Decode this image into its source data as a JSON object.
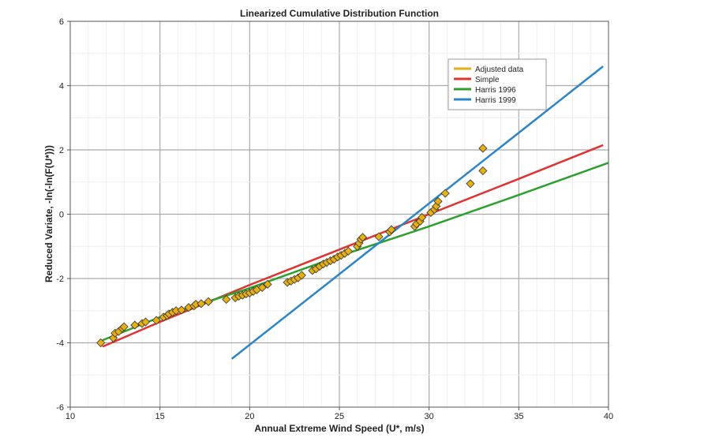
{
  "chart_data": {
    "type": "scatter",
    "title": "Linearized Cumulative Distribution Function",
    "xlabel": "Annual Extreme Wind Speed (U*, m/s)",
    "ylabel": "Reduced Variate, -ln(-ln(F(U*)))",
    "xlim": [
      10,
      40
    ],
    "ylim": [
      -6,
      6
    ],
    "xticks": [
      10,
      15,
      20,
      25,
      30,
      35,
      40
    ],
    "yticks": [
      -6,
      -4,
      -2,
      0,
      2,
      4,
      6
    ],
    "grid": true,
    "legend_position": "top-right",
    "series": [
      {
        "name": "Adjusted data",
        "type": "scatter",
        "color": "#e6b012",
        "points": [
          [
            11.7,
            -4.0
          ],
          [
            12.4,
            -3.85
          ],
          [
            12.5,
            -3.7
          ],
          [
            12.7,
            -3.65
          ],
          [
            12.9,
            -3.55
          ],
          [
            13.0,
            -3.5
          ],
          [
            13.6,
            -3.45
          ],
          [
            14.0,
            -3.4
          ],
          [
            14.2,
            -3.35
          ],
          [
            14.8,
            -3.3
          ],
          [
            15.2,
            -3.2
          ],
          [
            15.4,
            -3.15
          ],
          [
            15.5,
            -3.1
          ],
          [
            15.7,
            -3.05
          ],
          [
            15.9,
            -3.0
          ],
          [
            16.2,
            -2.98
          ],
          [
            16.6,
            -2.9
          ],
          [
            16.9,
            -2.85
          ],
          [
            17.0,
            -2.8
          ],
          [
            17.3,
            -2.78
          ],
          [
            17.7,
            -2.72
          ],
          [
            18.7,
            -2.65
          ],
          [
            19.2,
            -2.6
          ],
          [
            19.4,
            -2.55
          ],
          [
            19.6,
            -2.52
          ],
          [
            19.8,
            -2.48
          ],
          [
            20.0,
            -2.45
          ],
          [
            20.2,
            -2.4
          ],
          [
            20.4,
            -2.35
          ],
          [
            20.7,
            -2.28
          ],
          [
            21.0,
            -2.18
          ],
          [
            22.1,
            -2.12
          ],
          [
            22.3,
            -2.08
          ],
          [
            22.5,
            -2.03
          ],
          [
            22.7,
            -1.98
          ],
          [
            22.9,
            -1.9
          ],
          [
            23.5,
            -1.75
          ],
          [
            23.7,
            -1.7
          ],
          [
            23.9,
            -1.62
          ],
          [
            24.1,
            -1.55
          ],
          [
            24.3,
            -1.5
          ],
          [
            24.5,
            -1.45
          ],
          [
            24.7,
            -1.4
          ],
          [
            24.9,
            -1.33
          ],
          [
            25.1,
            -1.28
          ],
          [
            25.3,
            -1.22
          ],
          [
            25.5,
            -1.15
          ],
          [
            26.0,
            -1.0
          ],
          [
            26.1,
            -0.9
          ],
          [
            26.2,
            -0.78
          ],
          [
            26.3,
            -0.72
          ],
          [
            27.2,
            -0.7
          ],
          [
            27.8,
            -0.55
          ],
          [
            27.9,
            -0.48
          ],
          [
            29.2,
            -0.38
          ],
          [
            29.3,
            -0.3
          ],
          [
            29.5,
            -0.22
          ],
          [
            29.6,
            -0.1
          ],
          [
            30.1,
            0.05
          ],
          [
            30.3,
            0.15
          ],
          [
            30.4,
            0.25
          ],
          [
            30.5,
            0.4
          ],
          [
            30.9,
            0.65
          ],
          [
            32.3,
            0.95
          ],
          [
            33.0,
            1.35
          ],
          [
            33.0,
            2.05
          ]
        ]
      },
      {
        "name": "Simple",
        "type": "line",
        "color": "#e0332f",
        "points": [
          [
            11.8,
            -4.12
          ],
          [
            15,
            -3.35
          ],
          [
            20,
            -2.2
          ],
          [
            25,
            -1.1
          ],
          [
            30,
            0.0
          ],
          [
            35,
            1.1
          ],
          [
            39.7,
            2.15
          ]
        ]
      },
      {
        "name": "Harris 1996",
        "type": "line",
        "color": "#2ca02c",
        "points": [
          [
            11.8,
            -3.92
          ],
          [
            15,
            -3.2
          ],
          [
            20,
            -2.3
          ],
          [
            25,
            -1.3
          ],
          [
            28,
            -0.75
          ],
          [
            30,
            -0.38
          ],
          [
            35,
            0.6
          ],
          [
            40,
            1.6
          ]
        ]
      },
      {
        "name": "Harris 1999",
        "type": "line",
        "color": "#2c85c8",
        "points": [
          [
            19,
            -4.5
          ],
          [
            39.7,
            4.6
          ]
        ]
      }
    ]
  }
}
